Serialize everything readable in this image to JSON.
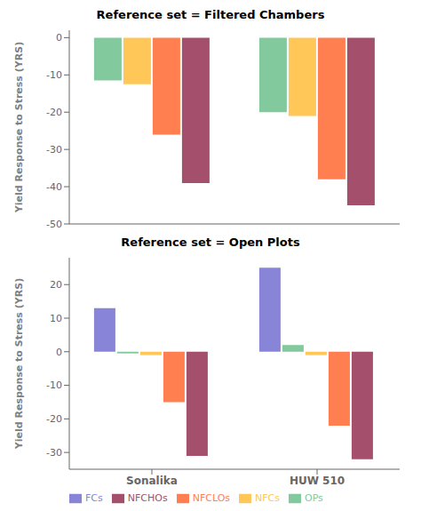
{
  "chart_data": [
    {
      "type": "bar",
      "title": "Reference set = Filtered Chambers",
      "ylabel": "Yield Response to Stress (YRS)",
      "categories": [
        null,
        null
      ],
      "series": [
        {
          "name": "OPs",
          "color": "#82ca9d",
          "values": [
            -11.5,
            -20
          ]
        },
        {
          "name": "NFCs",
          "color": "#ffc658",
          "values": [
            -12.5,
            -21
          ]
        },
        {
          "name": "NFCLOs",
          "color": "#ff7f50",
          "values": [
            -26,
            -38
          ]
        },
        {
          "name": "NFCHOs",
          "color": "#a4506c",
          "values": [
            -39,
            -45
          ]
        }
      ],
      "ylim": [
        -50,
        2
      ],
      "yticks": [
        0,
        -10,
        -20,
        -30,
        -40,
        -50
      ],
      "grid": false
    },
    {
      "type": "bar",
      "title": "Reference set = Open Plots",
      "ylabel": "Yield Response to Stress (YRS)",
      "categories": [
        "Sonalika",
        "HUW 510"
      ],
      "series": [
        {
          "name": "FCs",
          "color": "#8884d8",
          "values": [
            13,
            25
          ]
        },
        {
          "name": "OPs",
          "color": "#82ca9d",
          "values": [
            -0.5,
            2
          ]
        },
        {
          "name": "NFCs",
          "color": "#ffc658",
          "values": [
            -1,
            -1
          ]
        },
        {
          "name": "NFCLOs",
          "color": "#ff7f50",
          "values": [
            -15,
            -22
          ]
        },
        {
          "name": "NFCHOs",
          "color": "#a4506c",
          "values": [
            -31,
            -32
          ]
        }
      ],
      "ylim": [
        -35,
        28
      ],
      "yticks": [
        -30,
        -20,
        -10,
        0,
        10,
        20
      ],
      "grid": false,
      "legend": "lower left"
    }
  ]
}
